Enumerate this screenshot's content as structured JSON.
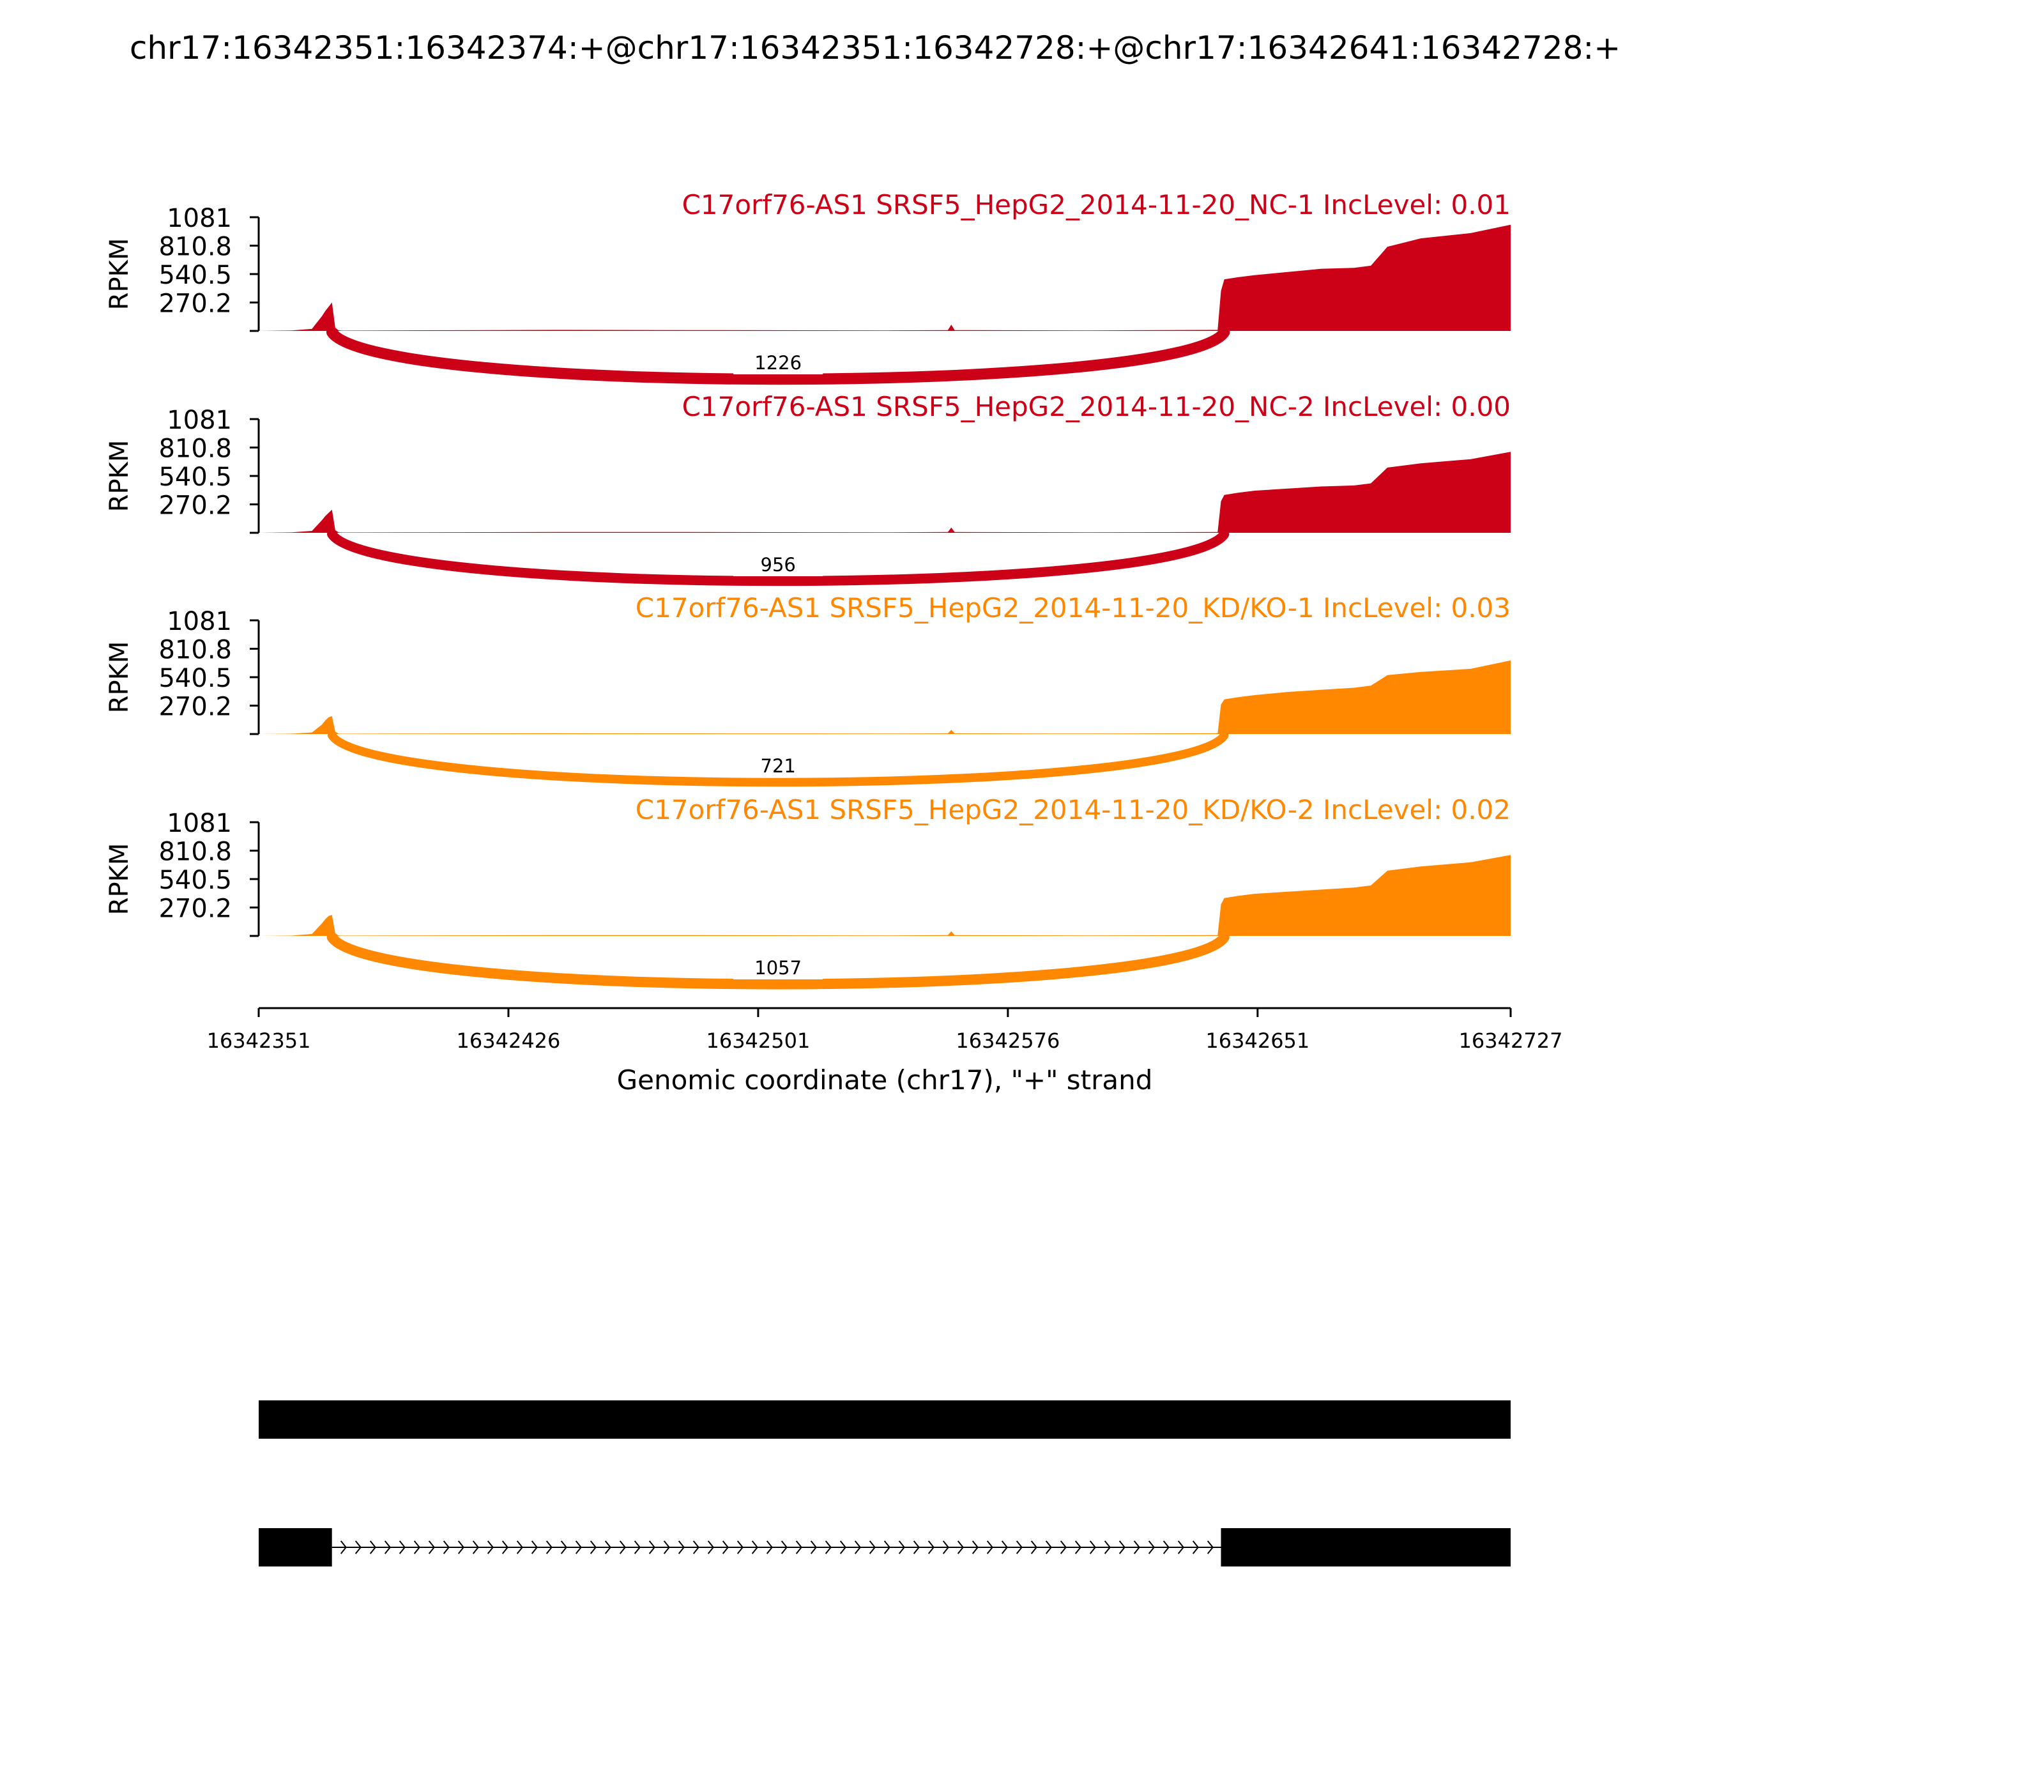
{
  "title": "chr17:16342351:16342374:+@chr17:16342351:16342728:+@chr17:16342641:16342728:+",
  "colors": {
    "nc": "#cc0017",
    "kd": "#ff8800",
    "axis": "#000000",
    "gene": "#000000"
  },
  "chart_data": {
    "type": "area",
    "title": "chr17:16342351:16342374:+@chr17:16342351:16342728:+@chr17:16342641:16342728:+",
    "xlabel": "Genomic coordinate (chr17), \"+\" strand",
    "ylabel": "RPKM",
    "xlim": [
      16342351,
      16342727
    ],
    "x_ticks": [
      "16342351",
      "16342426",
      "16342501",
      "16342576",
      "16342651",
      "16342727"
    ],
    "ylim": [
      0,
      1081
    ],
    "y_ticks": [
      "1081",
      "810.8",
      "540.5",
      "270.2"
    ],
    "y_tick_values": [
      1081,
      810.8,
      540.5,
      270.2
    ],
    "x": [
      16342351,
      16342361,
      16342367,
      16342370,
      16342371,
      16342372,
      16342373,
      16342374,
      16342375,
      16342376,
      16342400,
      16342440,
      16342480,
      16342540,
      16342558,
      16342559,
      16342560,
      16342600,
      16342639,
      16342640,
      16342641,
      16342645,
      16342650,
      16342660,
      16342670,
      16342680,
      16342685,
      16342690,
      16342700,
      16342715,
      16342727
    ],
    "series": [
      {
        "label": "C17orf76-AS1 SRSF5_HepG2_2014-11-20_NC-1 IncLevel: 0.01",
        "group": "nc",
        "values": [
          0,
          4,
          20,
          140,
          190,
          230,
          270,
          30,
          6,
          3,
          6,
          10,
          8,
          5,
          8,
          60,
          8,
          5,
          10,
          380,
          490,
          510,
          530,
          560,
          590,
          600,
          620,
          800,
          880,
          930,
          1010
        ],
        "junction_count": "1226"
      },
      {
        "label": "C17orf76-AS1 SRSF5_HepG2_2014-11-20_NC-2 IncLevel: 0.00",
        "group": "nc",
        "values": [
          0,
          4,
          18,
          120,
          160,
          190,
          220,
          25,
          5,
          3,
          5,
          8,
          7,
          4,
          7,
          50,
          7,
          4,
          8,
          300,
          360,
          380,
          400,
          420,
          440,
          450,
          470,
          620,
          660,
          700,
          770
        ],
        "junction_count": "956"
      },
      {
        "label": "C17orf76-AS1 SRSF5_HepG2_2014-11-20_KD/KO-1 IncLevel: 0.03",
        "group": "kd",
        "values": [
          0,
          3,
          15,
          90,
          130,
          160,
          170,
          22,
          5,
          3,
          5,
          7,
          6,
          4,
          6,
          40,
          6,
          4,
          7,
          280,
          330,
          350,
          370,
          400,
          420,
          440,
          460,
          560,
          590,
          620,
          700
        ],
        "junction_count": "721"
      },
      {
        "label": "C17orf76-AS1 SRSF5_HepG2_2014-11-20_KD/KO-2 IncLevel: 0.02",
        "group": "kd",
        "values": [
          0,
          3,
          18,
          120,
          160,
          190,
          200,
          24,
          5,
          3,
          5,
          8,
          7,
          4,
          7,
          45,
          7,
          4,
          8,
          300,
          360,
          380,
          400,
          420,
          440,
          460,
          480,
          620,
          660,
          700,
          770
        ],
        "junction_count": "1057"
      }
    ],
    "junction": {
      "start": 16342373,
      "end": 16342641
    },
    "gene_models": [
      {
        "exons": [
          [
            16342351,
            16342727
          ]
        ]
      },
      {
        "exons": [
          [
            16342351,
            16342373
          ],
          [
            16342640,
            16342727
          ]
        ],
        "strand": "+"
      }
    ]
  }
}
